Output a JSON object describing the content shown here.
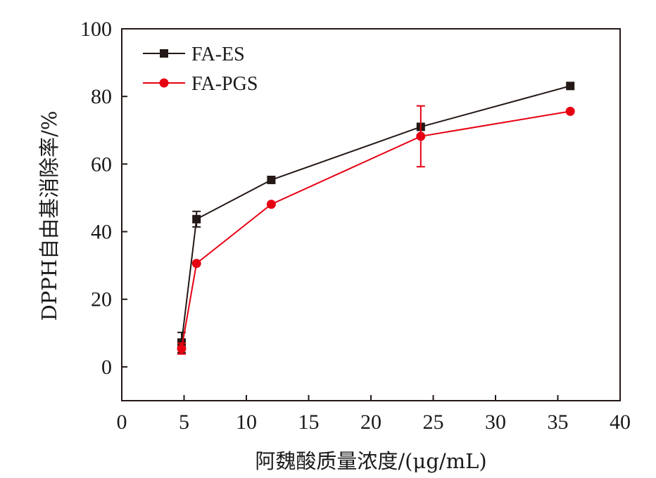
{
  "chart_data": {
    "type": "line",
    "xlabel": "阿魏酸质量浓度/(μg/mL)",
    "ylabel": "DPPH自由基消除率/%",
    "xlim": [
      0,
      40
    ],
    "ylim": [
      -10,
      100
    ],
    "xticks": [
      "0",
      "5",
      "10",
      "15",
      "20",
      "25",
      "30",
      "35",
      "40"
    ],
    "yticks": [
      "0",
      "20",
      "40",
      "60",
      "80",
      "100"
    ],
    "legend_position": "top-left",
    "series": [
      {
        "name": "FA-ES",
        "color": "#231815",
        "marker": "square",
        "x": [
          4.8,
          6,
          12,
          24,
          36
        ],
        "y": [
          7.2,
          43.7,
          55.3,
          71.0,
          83.1
        ],
        "error": [
          3.0,
          2.3,
          0,
          0,
          0
        ]
      },
      {
        "name": "FA-PGS",
        "color": "#e60012",
        "marker": "circle",
        "x": [
          4.8,
          6,
          12,
          24,
          36
        ],
        "y": [
          5.4,
          30.6,
          48.1,
          68.2,
          75.6
        ],
        "error": [
          1.6,
          0,
          0,
          9.0,
          0
        ]
      }
    ]
  }
}
